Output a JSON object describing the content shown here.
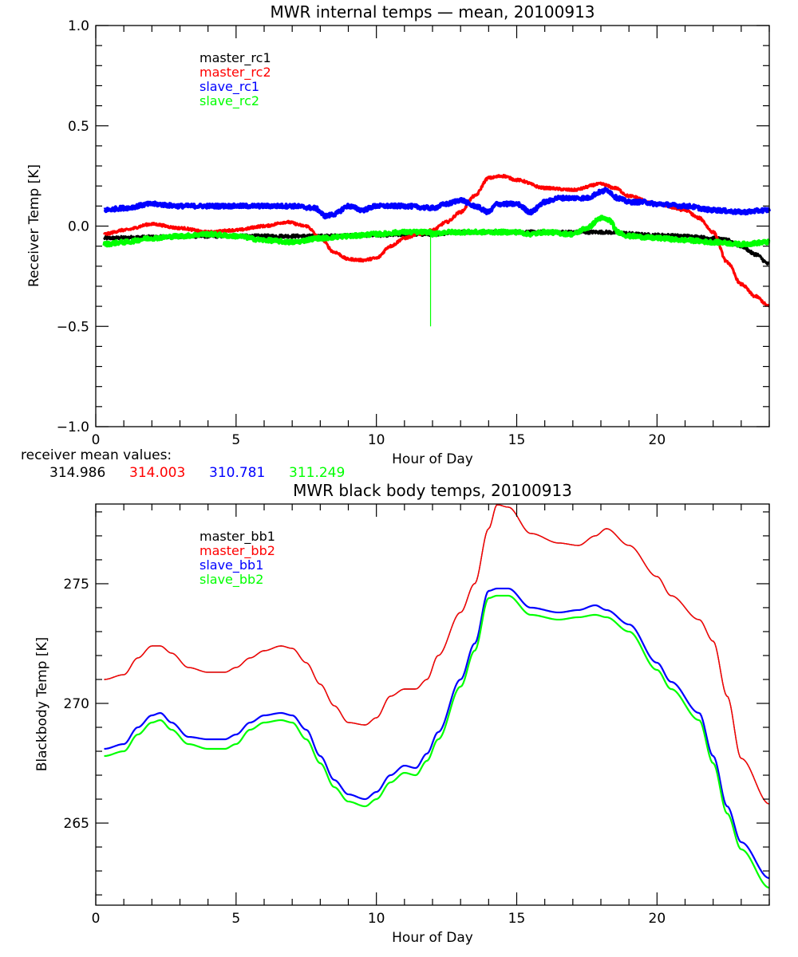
{
  "chart_data": [
    {
      "type": "line",
      "title": "MWR internal temps — mean, 20100913",
      "xlabel": "Hour of Day",
      "ylabel": "Receiver Temp [K]",
      "xlim": [
        0,
        24
      ],
      "ylim": [
        -1.0,
        1.0
      ],
      "xticks": [
        0,
        5,
        10,
        15,
        20
      ],
      "xtick_labels": [
        "0",
        "5",
        "10",
        "15",
        "20"
      ],
      "yticks": [
        -1.0,
        -0.5,
        0.0,
        0.5,
        1.0
      ],
      "ytick_labels": [
        "−1.0",
        "−0.5",
        "0.0",
        "0.5",
        "1.0"
      ],
      "x_minor_step": 1,
      "y_minor_step": 0.1,
      "grid": false,
      "legend_placement": "top-left",
      "series": [
        {
          "name": "master_rc1",
          "color": "#000000",
          "noise": 0.008,
          "x": [
            0.3,
            2,
            4,
            6,
            8,
            10,
            12,
            13,
            14,
            16,
            18,
            20,
            21,
            22,
            22.5,
            23,
            23.5,
            24
          ],
          "y": [
            -0.06,
            -0.055,
            -0.05,
            -0.05,
            -0.05,
            -0.045,
            -0.04,
            -0.03,
            -0.03,
            -0.03,
            -0.03,
            -0.045,
            -0.05,
            -0.06,
            -0.07,
            -0.1,
            -0.14,
            -0.19
          ]
        },
        {
          "name": "master_rc2",
          "color": "#ff0000",
          "noise": 0.006,
          "x": [
            0.3,
            1,
            2,
            3,
            4,
            5,
            6,
            6.8,
            7.5,
            8,
            8.5,
            9,
            9.5,
            10,
            10.5,
            11,
            11.5,
            12,
            12.5,
            13,
            13.5,
            14,
            14.5,
            15,
            16,
            17,
            18,
            18.5,
            19,
            20,
            21,
            21.5,
            22,
            22.5,
            23,
            23.5,
            24
          ],
          "y": [
            -0.04,
            -0.02,
            0.01,
            -0.01,
            -0.03,
            -0.02,
            0.0,
            0.02,
            0.0,
            -0.06,
            -0.13,
            -0.165,
            -0.17,
            -0.16,
            -0.1,
            -0.06,
            -0.04,
            -0.02,
            0.02,
            0.07,
            0.15,
            0.24,
            0.25,
            0.23,
            0.19,
            0.18,
            0.21,
            0.19,
            0.15,
            0.11,
            0.08,
            0.04,
            -0.03,
            -0.18,
            -0.29,
            -0.35,
            -0.4
          ]
        },
        {
          "name": "slave_rc1",
          "color": "#0000ff",
          "noise": 0.01,
          "x": [
            0.3,
            1,
            2,
            3,
            4,
            5,
            6,
            7,
            7.8,
            8.2,
            8.5,
            9,
            9.5,
            10,
            11,
            12,
            12.5,
            13,
            13.5,
            14,
            14.3,
            14.6,
            15,
            15.5,
            16,
            16.5,
            17,
            17.5,
            18,
            18.2,
            18.6,
            19,
            19.5,
            20,
            21,
            22,
            23,
            24
          ],
          "y": [
            0.08,
            0.09,
            0.11,
            0.1,
            0.1,
            0.1,
            0.1,
            0.1,
            0.09,
            0.05,
            0.06,
            0.1,
            0.08,
            0.1,
            0.1,
            0.09,
            0.11,
            0.13,
            0.1,
            0.07,
            0.11,
            0.11,
            0.11,
            0.07,
            0.12,
            0.14,
            0.14,
            0.14,
            0.17,
            0.18,
            0.14,
            0.12,
            0.12,
            0.11,
            0.1,
            0.08,
            0.07,
            0.08
          ]
        },
        {
          "name": "slave_rc2",
          "color": "#00ff00",
          "noise": 0.01,
          "x": [
            0.3,
            1,
            2,
            3,
            4,
            5,
            6,
            7,
            8,
            9,
            10,
            11,
            11.9,
            12,
            12.5,
            13,
            14,
            15,
            15.5,
            16,
            17,
            17.5,
            18,
            18.3,
            18.6,
            19,
            20,
            21,
            22,
            23,
            24
          ],
          "y": [
            -0.09,
            -0.08,
            -0.06,
            -0.05,
            -0.04,
            -0.05,
            -0.07,
            -0.08,
            -0.06,
            -0.05,
            -0.04,
            -0.03,
            -0.03,
            -0.04,
            -0.03,
            -0.03,
            -0.03,
            -0.03,
            -0.04,
            -0.03,
            -0.04,
            -0.01,
            0.04,
            0.03,
            -0.03,
            -0.05,
            -0.06,
            -0.07,
            -0.08,
            -0.09,
            -0.08
          ],
          "spike": {
            "x": 11.93,
            "ymin": -0.5
          }
        }
      ]
    },
    {
      "type": "line",
      "title": "MWR black body temps, 20100913",
      "xlabel": "Hour of Day",
      "ylabel": "Blackbody Temp [K]",
      "xlim": [
        0,
        24
      ],
      "ylim": [
        261.57,
        278.33
      ],
      "xticks": [
        0,
        5,
        10,
        15,
        20
      ],
      "xtick_labels": [
        "0",
        "5",
        "10",
        "15",
        "20"
      ],
      "yticks": [
        265,
        270,
        275
      ],
      "ytick_labels": [
        "265",
        "270",
        "275"
      ],
      "x_minor_step": 1,
      "y_minor_step": 1,
      "grid": false,
      "legend_placement": "top-left",
      "series": [
        {
          "name": "master_bb1",
          "color": "#000000",
          "noise": 0,
          "x": [
            0.3,
            1,
            1.5,
            2,
            2.3,
            2.7,
            3.3,
            4,
            4.6,
            5,
            5.5,
            6,
            6.6,
            7,
            7.5,
            8,
            8.5,
            9,
            9.6,
            10,
            10.5,
            11,
            11.4,
            11.8,
            12.2,
            13,
            13.5,
            14,
            14.3,
            14.7,
            15.5,
            16.5,
            17.2,
            17.8,
            18.2,
            19,
            20,
            20.5,
            21.5,
            22,
            22.5,
            23,
            24
          ],
          "y": [
            271.0,
            271.2,
            271.9,
            272.4,
            272.4,
            272.1,
            271.5,
            271.3,
            271.3,
            271.5,
            271.9,
            272.2,
            272.4,
            272.3,
            271.7,
            270.8,
            269.9,
            269.2,
            269.1,
            269.4,
            270.3,
            270.6,
            270.6,
            271.0,
            272.0,
            273.8,
            275.0,
            277.3,
            278.3,
            278.2,
            277.1,
            276.7,
            276.6,
            277.0,
            277.3,
            276.6,
            275.3,
            274.5,
            273.5,
            272.6,
            270.3,
            267.7,
            265.8
          ]
        },
        {
          "name": "master_bb2",
          "color": "#ff0000",
          "noise": 0,
          "x": [
            0.3,
            1,
            1.5,
            2,
            2.3,
            2.7,
            3.3,
            4,
            4.6,
            5,
            5.5,
            6,
            6.6,
            7,
            7.5,
            8,
            8.5,
            9,
            9.6,
            10,
            10.5,
            11,
            11.4,
            11.8,
            12.2,
            13,
            13.5,
            14,
            14.3,
            14.7,
            15.5,
            16.5,
            17.2,
            17.8,
            18.2,
            19,
            20,
            20.5,
            21.5,
            22,
            22.5,
            23,
            24
          ],
          "y": [
            271.0,
            271.2,
            271.9,
            272.4,
            272.4,
            272.1,
            271.5,
            271.3,
            271.3,
            271.5,
            271.9,
            272.2,
            272.4,
            272.3,
            271.7,
            270.8,
            269.9,
            269.2,
            269.1,
            269.4,
            270.3,
            270.6,
            270.6,
            271.0,
            272.0,
            273.8,
            275.0,
            277.3,
            278.3,
            278.2,
            277.1,
            276.7,
            276.6,
            277.0,
            277.3,
            276.6,
            275.3,
            274.5,
            273.5,
            272.6,
            270.3,
            267.7,
            265.8
          ]
        },
        {
          "name": "slave_bb1",
          "color": "#0000ff",
          "noise": 0,
          "x": [
            0.3,
            1,
            1.5,
            2,
            2.3,
            2.7,
            3.3,
            4,
            4.6,
            5,
            5.5,
            6,
            6.6,
            7,
            7.5,
            8,
            8.5,
            9,
            9.6,
            10,
            10.5,
            11,
            11.4,
            11.8,
            12.2,
            13,
            13.5,
            14,
            14.3,
            14.7,
            15.5,
            16.5,
            17.2,
            17.8,
            18.2,
            19,
            20,
            20.5,
            21.5,
            22,
            22.5,
            23,
            24
          ],
          "y": [
            268.1,
            268.3,
            269.0,
            269.5,
            269.6,
            269.2,
            268.6,
            268.5,
            268.5,
            268.7,
            269.2,
            269.5,
            269.6,
            269.5,
            268.9,
            267.8,
            266.8,
            266.2,
            266.0,
            266.3,
            267.0,
            267.4,
            267.3,
            267.9,
            268.8,
            271.0,
            272.5,
            274.7,
            274.8,
            274.8,
            274.0,
            273.8,
            273.9,
            274.1,
            273.9,
            273.3,
            271.7,
            270.9,
            269.6,
            267.8,
            265.7,
            264.2,
            262.7
          ]
        },
        {
          "name": "slave_bb2",
          "color": "#00ff00",
          "noise": 0,
          "x": [
            0.3,
            1,
            1.5,
            2,
            2.3,
            2.7,
            3.3,
            4,
            4.6,
            5,
            5.5,
            6,
            6.6,
            7,
            7.5,
            8,
            8.5,
            9,
            9.6,
            10,
            10.5,
            11,
            11.4,
            11.8,
            12.2,
            13,
            13.5,
            14,
            14.3,
            14.7,
            15.5,
            16.5,
            17.2,
            17.8,
            18.2,
            19,
            20,
            20.5,
            21.5,
            22,
            22.5,
            23,
            24
          ],
          "y": [
            267.8,
            268.0,
            268.7,
            269.2,
            269.3,
            268.9,
            268.3,
            268.1,
            268.1,
            268.3,
            268.9,
            269.2,
            269.3,
            269.2,
            268.5,
            267.5,
            266.5,
            265.9,
            265.7,
            266.0,
            266.7,
            267.1,
            267.0,
            267.6,
            268.5,
            270.7,
            272.2,
            274.4,
            274.5,
            274.5,
            273.7,
            273.5,
            273.6,
            273.7,
            273.6,
            273.0,
            271.4,
            270.6,
            269.3,
            267.5,
            265.4,
            263.9,
            262.3
          ]
        }
      ]
    }
  ],
  "receiver_means": {
    "label": "receiver mean values:",
    "values": [
      {
        "text": "314.986",
        "color": "#000000"
      },
      {
        "text": "314.003",
        "color": "#ff0000"
      },
      {
        "text": "310.781",
        "color": "#0000ff"
      },
      {
        "text": "311.249",
        "color": "#00ff00"
      }
    ]
  }
}
